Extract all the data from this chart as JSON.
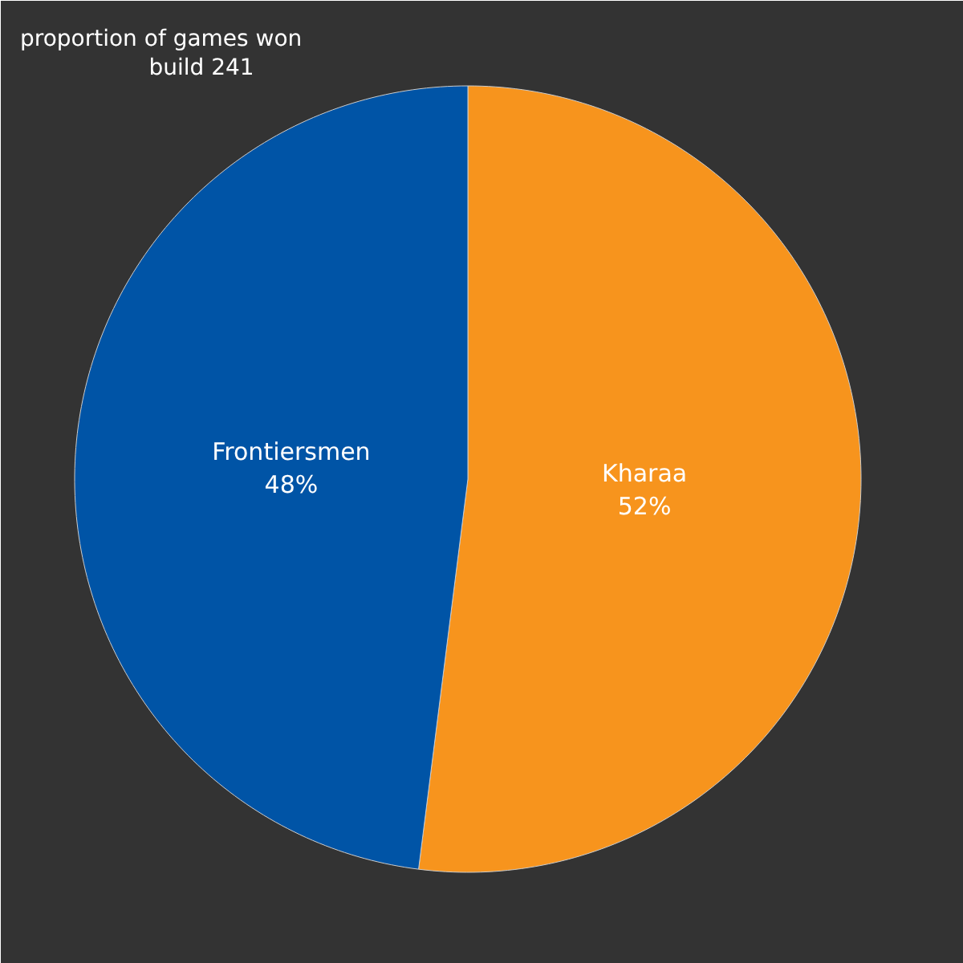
{
  "chart_data": {
    "type": "pie",
    "title": "proportion of games won",
    "subtitle": "build 241",
    "categories": [
      "Kharaa",
      "Frontiersmen"
    ],
    "values": [
      52,
      48
    ],
    "colors": [
      "#f7941d",
      "#0054a6"
    ],
    "value_labels": [
      "52%",
      "48%"
    ]
  }
}
